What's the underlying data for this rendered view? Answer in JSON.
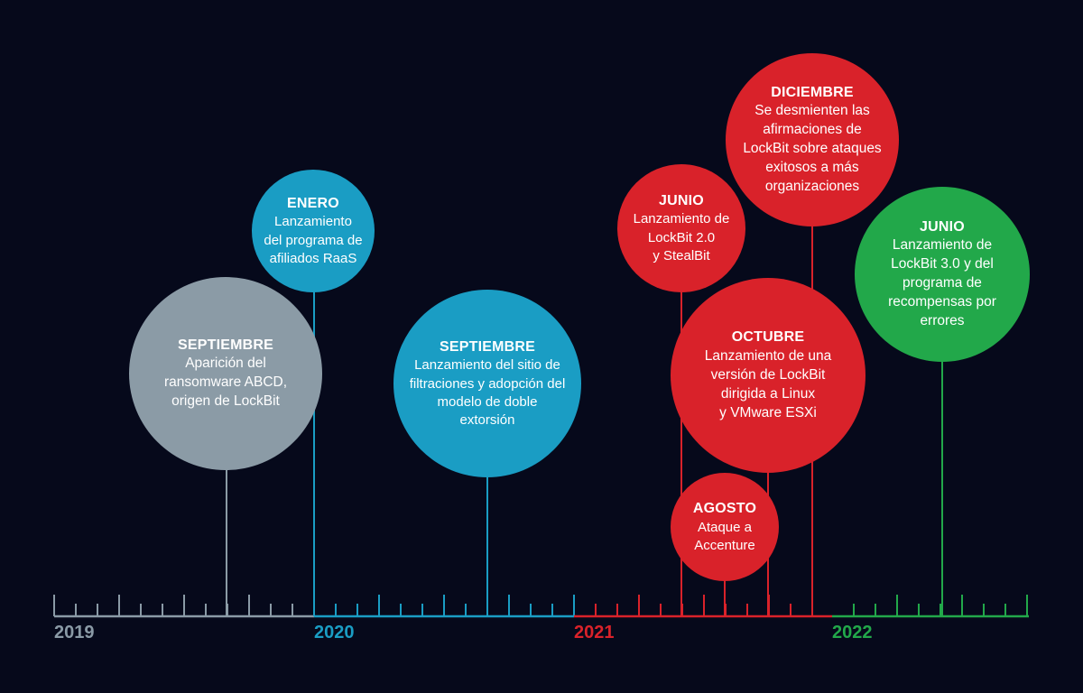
{
  "colors": {
    "background": "#06091b",
    "y2019": "#8a9aa6",
    "y2020": "#1a9dc4",
    "y2021": "#d9222a",
    "y2022": "#22a84a"
  },
  "years": [
    {
      "label": "2019",
      "color": "#8a9aa6"
    },
    {
      "label": "2020",
      "color": "#1a9dc4"
    },
    {
      "label": "2021",
      "color": "#d9222a"
    },
    {
      "label": "2022",
      "color": "#22a84a"
    }
  ],
  "events": [
    {
      "month": "SEPTIEMBRE",
      "desc": "Aparición del\nransomware ABCD,\norigen de LockBit",
      "color": "#8b9ba6"
    },
    {
      "month": "ENERO",
      "desc": "Lanzamiento\ndel programa de\nafiliados RaaS",
      "color": "#1a9dc4"
    },
    {
      "month": "SEPTIEMBRE",
      "desc": "Lanzamiento del sitio de\nfiltraciones y adopción del\nmodelo de doble\nextorsión",
      "color": "#1a9dc4"
    },
    {
      "month": "JUNIO",
      "desc": "Lanzamiento de\nLockBit 2.0\ny StealBit",
      "color": "#d9222a"
    },
    {
      "month": "DICIEMBRE",
      "desc": "Se desmienten las\nafirmaciones de\nLockBit sobre ataques\nexitosos a más\norganizaciones",
      "color": "#d9222a"
    },
    {
      "month": "OCTUBRE",
      "desc": "Lanzamiento de una\nversión de LockBit\ndirigida a Linux\ny VMware ESXi",
      "color": "#d9222a"
    },
    {
      "month": "AGOSTO",
      "desc": "Ataque a\nAccenture",
      "color": "#d9222a"
    },
    {
      "month": "JUNIO",
      "desc": "Lanzamiento de\nLockBit 3.0 y del\nprograma de\nrecompensas por\nerrores",
      "color": "#22a84a"
    }
  ]
}
